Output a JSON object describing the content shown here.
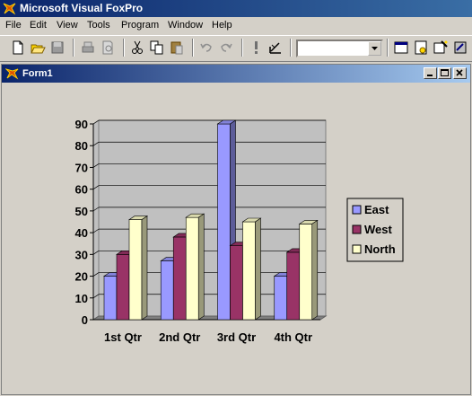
{
  "app": {
    "title": "Microsoft Visual FoxPro"
  },
  "menu": [
    "File",
    "Edit",
    "View",
    "Tools",
    "Program",
    "Window",
    "Help"
  ],
  "toolbar": {
    "icons": [
      "new-icon",
      "open-icon",
      "save-icon",
      "print-icon",
      "print-preview-icon",
      "cut-icon",
      "copy-icon",
      "paste-icon",
      "undo-icon",
      "redo-icon",
      "run-icon",
      "modify-form-icon",
      "command-window-icon",
      "view-window-icon",
      "form-wizard-icon",
      "builder-icon"
    ],
    "combo_value": ""
  },
  "form": {
    "title": "Form1"
  },
  "chart_data": {
    "type": "bar",
    "categories": [
      "1st Qtr",
      "2nd Qtr",
      "3rd Qtr",
      "4th Qtr"
    ],
    "series": [
      {
        "name": "East",
        "values": [
          20,
          27,
          90,
          20
        ],
        "color": "#9999ff"
      },
      {
        "name": "West",
        "values": [
          30,
          38,
          34,
          31
        ],
        "color": "#993366"
      },
      {
        "name": "North",
        "values": [
          46,
          47,
          45,
          44
        ],
        "color": "#ffffcc"
      }
    ],
    "ylim": [
      0,
      90
    ],
    "yticks": [
      0,
      10,
      20,
      30,
      40,
      50,
      60,
      70,
      80,
      90
    ],
    "grid": true,
    "legend": "right",
    "plot_background": "#c0c0c0"
  }
}
